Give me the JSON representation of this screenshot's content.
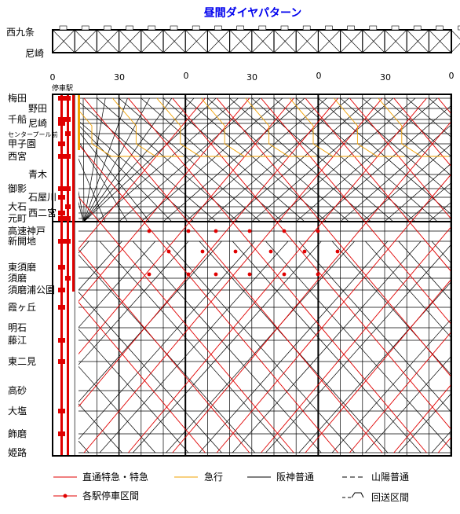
{
  "title": "昼間ダイヤパターン",
  "top_panel": {
    "stations": [
      "西九条",
      "尼崎"
    ]
  },
  "time_axis": {
    "labels": [
      "0",
      "30",
      "0",
      "30",
      "0",
      "30",
      "0"
    ]
  },
  "stop_column_label": "停車駅",
  "stations": [
    {
      "name": "梅田",
      "indent": 0,
      "small": false
    },
    {
      "name": "野田",
      "indent": 1,
      "small": false
    },
    {
      "name": "千船",
      "indent": 0,
      "small": false
    },
    {
      "name": "尼崎",
      "indent": 1,
      "small": false
    },
    {
      "name": "センタープール前",
      "indent": 0,
      "small": true
    },
    {
      "name": "甲子園",
      "indent": 0,
      "small": false
    },
    {
      "name": "西宮",
      "indent": 0,
      "small": false
    },
    {
      "name": "青木",
      "indent": 1,
      "small": false
    },
    {
      "name": "御影",
      "indent": 0,
      "small": false
    },
    {
      "name": "石屋川",
      "indent": 1,
      "small": false
    },
    {
      "name": "大石",
      "indent": 0,
      "small": false
    },
    {
      "name": "西二宮",
      "indent": 1,
      "small": false
    },
    {
      "name": "元町",
      "indent": 0,
      "small": false
    },
    {
      "name": "高速神戸",
      "indent": 0,
      "small": false
    },
    {
      "name": "新開地",
      "indent": 0,
      "small": false
    },
    {
      "name": "東須磨",
      "indent": 0,
      "small": false
    },
    {
      "name": "須磨",
      "indent": 0,
      "small": false
    },
    {
      "name": "須磨浦公園",
      "indent": 0,
      "small": false
    },
    {
      "name": "霞ヶ丘",
      "indent": 0,
      "small": false
    },
    {
      "name": "明石",
      "indent": 0,
      "small": false
    },
    {
      "name": "藤江",
      "indent": 0,
      "small": false
    },
    {
      "name": "東二見",
      "indent": 0,
      "small": false
    },
    {
      "name": "高砂",
      "indent": 0,
      "small": false
    },
    {
      "name": "大塩",
      "indent": 0,
      "small": false
    },
    {
      "name": "飾磨",
      "indent": 0,
      "small": false
    },
    {
      "name": "姫路",
      "indent": 0,
      "small": false
    }
  ],
  "legend": {
    "items": [
      {
        "label": "直通特急・特急",
        "color": "#e00000",
        "kind": "red-line"
      },
      {
        "label": "急行",
        "color": "#f0a000",
        "kind": "orange-line"
      },
      {
        "label": "阪神普通",
        "color": "#000000",
        "kind": "black-line"
      },
      {
        "label": "山陽普通",
        "color": "#000000",
        "kind": "dash-line"
      },
      {
        "label": "各駅停車区間",
        "color": "#e00000",
        "kind": "red-dot-line"
      },
      {
        "label": "回送区間",
        "color": "#000000",
        "kind": "deadhead"
      }
    ]
  },
  "colors": {
    "limited_express": "#e00000",
    "express": "#f0a000",
    "local": "#000000",
    "title": "#0000ee"
  }
}
